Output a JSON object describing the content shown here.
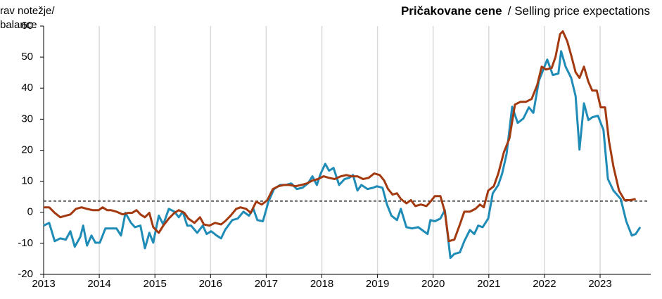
{
  "chart_data": {
    "type": "line",
    "title": "Pričakovane cene",
    "subtitle": "/ Selling price expectations",
    "y_label": [
      "rav notežje/",
      "balance"
    ],
    "xlim": [
      2013,
      2023.91
    ],
    "xticks": [
      2013,
      2014,
      2015,
      2016,
      2017,
      2018,
      2019,
      2020,
      2021,
      2022,
      2023
    ],
    "ylim": [
      -20,
      60
    ],
    "yticks": [
      -20,
      -10,
      0,
      10,
      20,
      30,
      40,
      50,
      60
    ],
    "grid": true,
    "reference_line": 3.6,
    "series": [
      {
        "color": "#1f8cb8",
        "x": [
          2013.0,
          2013.1,
          2013.2,
          2013.3,
          2013.4,
          2013.48,
          2013.56,
          2013.66,
          2013.71,
          2013.78,
          2013.86,
          2013.93,
          2014.01,
          2014.11,
          2014.21,
          2014.31,
          2014.39,
          2014.47,
          2014.57,
          2014.64,
          2014.74,
          2014.82,
          2014.9,
          2014.97,
          2015.07,
          2015.15,
          2015.25,
          2015.35,
          2015.43,
          2015.5,
          2015.58,
          2015.65,
          2015.76,
          2015.86,
          2015.93,
          2016.01,
          2016.11,
          2016.19,
          2016.26,
          2016.39,
          2016.49,
          2016.59,
          2016.69,
          2016.77,
          2016.84,
          2016.94,
          2017.04,
          2017.14,
          2017.25,
          2017.35,
          2017.45,
          2017.55,
          2017.65,
          2017.75,
          2017.83,
          2017.91,
          2017.98,
          2018.06,
          2018.13,
          2018.21,
          2018.31,
          2018.41,
          2018.49,
          2018.56,
          2018.64,
          2018.71,
          2018.82,
          2018.92,
          2018.99,
          2019.09,
          2019.17,
          2019.25,
          2019.35,
          2019.42,
          2019.52,
          2019.62,
          2019.73,
          2019.8,
          2019.9,
          2019.95,
          2020.03,
          2020.13,
          2020.21,
          2020.31,
          2020.38,
          2020.48,
          2020.56,
          2020.66,
          2020.74,
          2020.81,
          2020.89,
          2020.99,
          2021.07,
          2021.17,
          2021.24,
          2021.32,
          2021.42,
          2021.52,
          2021.62,
          2021.72,
          2021.8,
          2021.9,
          2022.0,
          2022.05,
          2022.15,
          2022.25,
          2022.3,
          2022.38,
          2022.48,
          2022.56,
          2022.63,
          2022.71,
          2022.79,
          2022.86,
          2022.96,
          2023.06,
          2023.14,
          2023.24,
          2023.37,
          2023.47,
          2023.57,
          2023.64,
          2023.72
        ],
        "values": [
          -4.3,
          -3.4,
          -9.3,
          -8.4,
          -8.8,
          -6.1,
          -11.1,
          -7.9,
          -4.3,
          -10.7,
          -7.5,
          -9.8,
          -9.8,
          -5.2,
          -5.2,
          -5.2,
          -7.5,
          -0.2,
          -3.4,
          -4.8,
          -4.3,
          -11.6,
          -6.6,
          -9.8,
          -1.1,
          -3.9,
          1.1,
          0.2,
          -1.6,
          0.2,
          -4.3,
          -4.3,
          -6.6,
          -4.3,
          -7.0,
          -6.1,
          -7.5,
          -8.4,
          -5.7,
          -2.5,
          -2.0,
          0.2,
          -1.1,
          1.1,
          -2.5,
          -2.9,
          3.4,
          7.5,
          8.8,
          8.8,
          9.3,
          7.5,
          7.9,
          9.3,
          11.6,
          8.8,
          12.5,
          15.6,
          13.4,
          14.3,
          8.8,
          10.7,
          11.1,
          12.0,
          7.0,
          8.8,
          7.5,
          7.9,
          8.4,
          7.9,
          2.5,
          -1.1,
          -2.5,
          1.1,
          -4.8,
          -5.2,
          -4.8,
          -5.7,
          -7.0,
          -2.5,
          -2.9,
          -2.0,
          0.7,
          -14.7,
          -13.4,
          -12.9,
          -9.3,
          -5.7,
          -7.0,
          -4.3,
          -4.8,
          -2.0,
          6.1,
          8.8,
          12.5,
          18.8,
          34.0,
          28.8,
          30.2,
          33.8,
          32.0,
          42.4,
          46.9,
          49.2,
          44.2,
          44.7,
          51.9,
          46.9,
          43.3,
          37.4,
          20.2,
          35.1,
          29.7,
          30.6,
          31.1,
          26.5,
          10.7,
          7.0,
          4.3,
          -2.9,
          -7.5,
          -7.0,
          -4.8
        ]
      },
      {
        "color": "#a3390f",
        "x": [
          2013.0,
          2013.1,
          2013.2,
          2013.3,
          2013.4,
          2013.48,
          2013.58,
          2013.68,
          2013.78,
          2013.88,
          2013.99,
          2014.06,
          2014.14,
          2014.21,
          2014.31,
          2014.42,
          2014.52,
          2014.59,
          2014.67,
          2014.74,
          2014.82,
          2014.9,
          2014.97,
          2015.07,
          2015.15,
          2015.25,
          2015.35,
          2015.43,
          2015.53,
          2015.6,
          2015.71,
          2015.81,
          2015.88,
          2015.98,
          2016.08,
          2016.19,
          2016.26,
          2016.36,
          2016.46,
          2016.54,
          2016.64,
          2016.72,
          2016.82,
          2016.92,
          2017.02,
          2017.12,
          2017.22,
          2017.32,
          2017.42,
          2017.53,
          2017.63,
          2017.73,
          2017.83,
          2017.93,
          2018.03,
          2018.13,
          2018.23,
          2018.34,
          2018.44,
          2018.54,
          2018.64,
          2018.74,
          2018.84,
          2018.94,
          2019.04,
          2019.12,
          2019.19,
          2019.27,
          2019.35,
          2019.42,
          2019.52,
          2019.6,
          2019.68,
          2019.78,
          2019.88,
          2019.95,
          2020.03,
          2020.13,
          2020.21,
          2020.28,
          2020.38,
          2020.48,
          2020.56,
          2020.66,
          2020.76,
          2020.84,
          2020.91,
          2020.99,
          2021.09,
          2021.17,
          2021.27,
          2021.37,
          2021.47,
          2021.57,
          2021.67,
          2021.77,
          2021.87,
          2021.95,
          2022.03,
          2022.13,
          2022.2,
          2022.28,
          2022.33,
          2022.41,
          2022.48,
          2022.56,
          2022.63,
          2022.71,
          2022.79,
          2022.86,
          2022.94,
          2023.01,
          2023.09,
          2023.16,
          2023.24,
          2023.34,
          2023.44,
          2023.54,
          2023.64
        ],
        "values": [
          1.6,
          1.6,
          -0.2,
          -1.6,
          -1.1,
          -0.7,
          1.1,
          1.6,
          1.1,
          0.7,
          0.7,
          1.6,
          0.7,
          0.7,
          0.2,
          -0.7,
          -0.2,
          -0.2,
          0.7,
          -0.7,
          -1.6,
          -0.2,
          -4.8,
          -6.6,
          -4.3,
          -2.0,
          -0.2,
          0.7,
          -0.2,
          -2.0,
          -3.4,
          -1.6,
          -3.9,
          -4.3,
          -3.4,
          -3.9,
          -2.9,
          -1.1,
          1.1,
          1.6,
          1.1,
          -0.2,
          3.4,
          2.5,
          3.9,
          7.5,
          8.4,
          8.8,
          8.8,
          8.4,
          8.8,
          9.3,
          10.2,
          10.7,
          11.6,
          11.1,
          10.7,
          11.6,
          12.0,
          11.6,
          11.6,
          10.7,
          11.1,
          12.5,
          12.0,
          10.2,
          7.5,
          5.7,
          6.1,
          4.3,
          2.9,
          3.9,
          2.0,
          2.5,
          2.0,
          3.4,
          5.2,
          5.2,
          0.2,
          -9.3,
          -8.8,
          -3.9,
          0.2,
          0.2,
          1.1,
          2.5,
          1.6,
          7.0,
          8.4,
          12.5,
          19.3,
          23.8,
          34.7,
          35.6,
          35.6,
          36.5,
          41.0,
          46.9,
          46.0,
          46.5,
          50.1,
          57.4,
          58.3,
          55.1,
          50.6,
          45.1,
          43.3,
          46.9,
          42.0,
          39.2,
          39.2,
          33.8,
          33.8,
          22.9,
          14.7,
          7.0,
          3.9,
          3.9,
          4.3
        ]
      }
    ]
  }
}
